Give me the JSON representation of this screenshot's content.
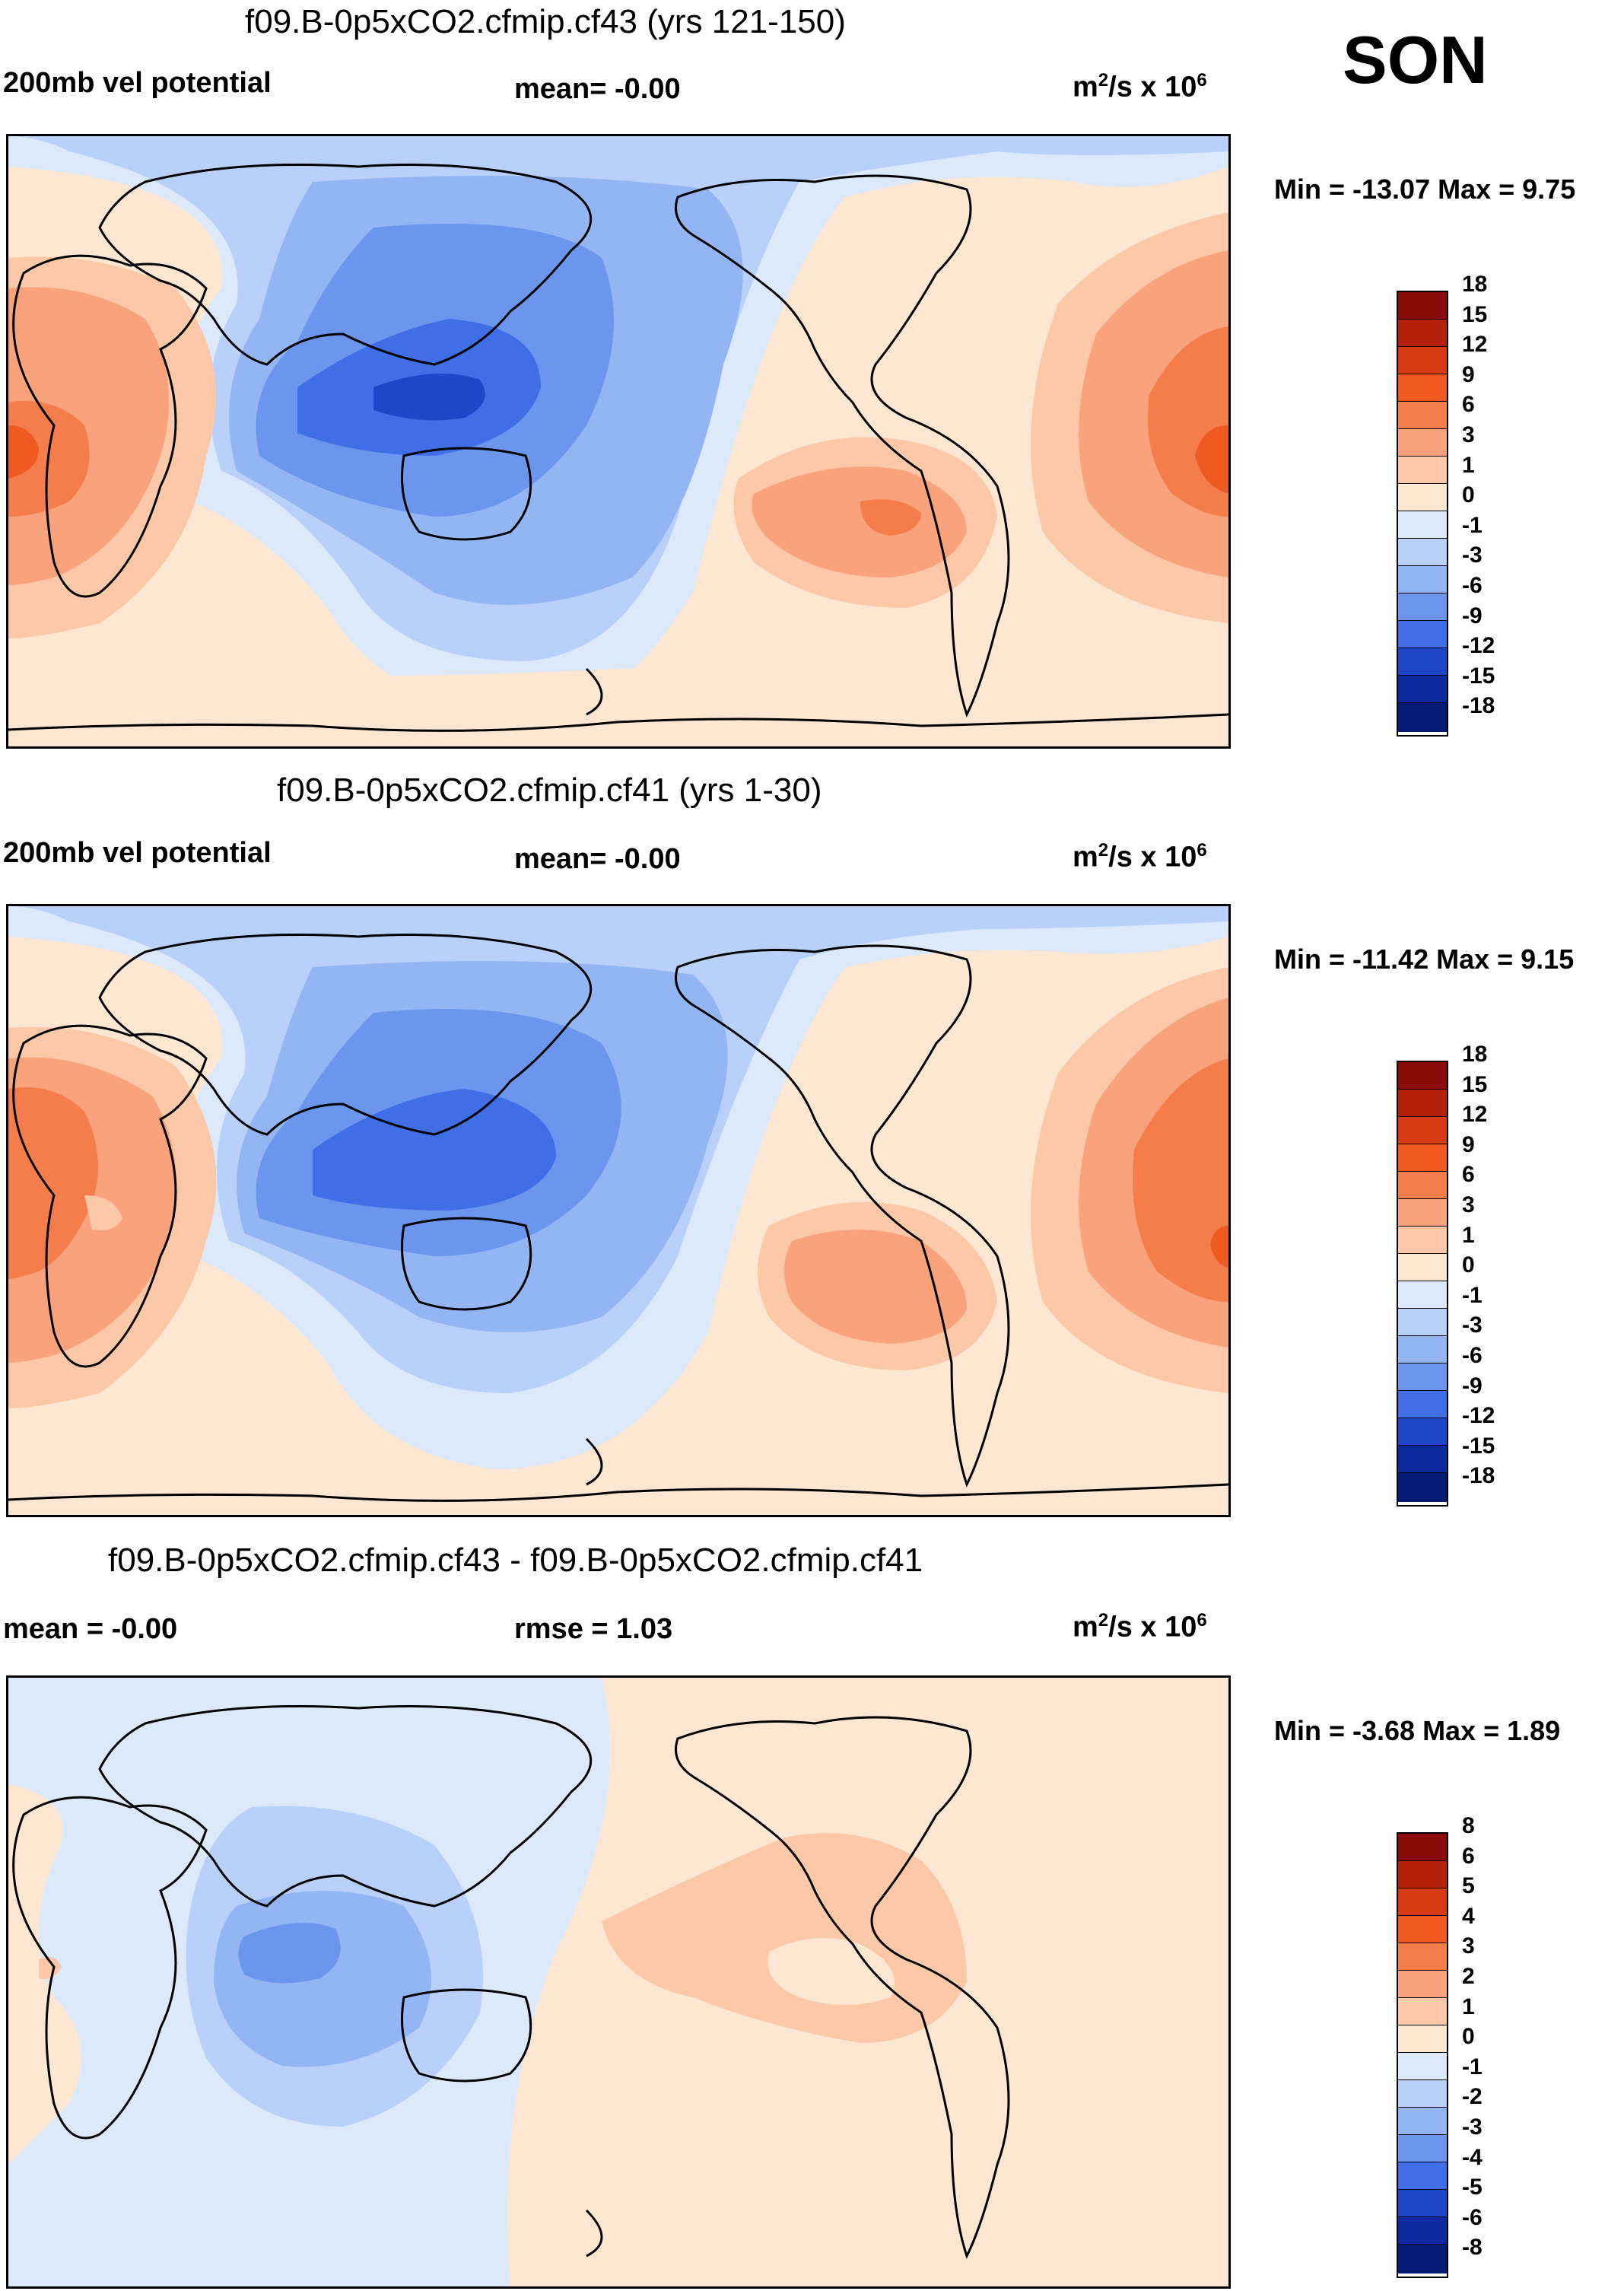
{
  "season": "SON",
  "panels": [
    {
      "title": "f09.B-0p5xCO2.cfmip.cf43 (yrs 121-150)",
      "left_label": "200mb vel potential",
      "mid_label": "mean=  -0.00",
      "unit_prefix": "m",
      "unit_mid": "/s x 10",
      "unit_sup1": "2",
      "unit_sup2": "6",
      "minmax": "Min = -13.07 Max =   9.75",
      "colorbar_labels": [
        "18",
        "15",
        "12",
        "9",
        "6",
        "3",
        "1",
        "0",
        "-1",
        "-3",
        "-6",
        "-9",
        "-12",
        "-15",
        "-18"
      ]
    },
    {
      "title": "f09.B-0p5xCO2.cfmip.cf41 (yrs 1-30)",
      "left_label": "200mb vel potential",
      "mid_label": "mean=  -0.00",
      "unit_prefix": "m",
      "unit_mid": "/s x 10",
      "unit_sup1": "2",
      "unit_sup2": "6",
      "minmax": "Min = -11.42 Max =   9.15",
      "colorbar_labels": [
        "18",
        "15",
        "12",
        "9",
        "6",
        "3",
        "1",
        "0",
        "-1",
        "-3",
        "-6",
        "-9",
        "-12",
        "-15",
        "-18"
      ]
    },
    {
      "title": "f09.B-0p5xCO2.cfmip.cf43 - f09.B-0p5xCO2.cfmip.cf41",
      "left_label": "mean =  -0.00",
      "mid_label": "rmse =    1.03",
      "unit_prefix": "m",
      "unit_mid": "/s x 10",
      "unit_sup1": "2",
      "unit_sup2": "6",
      "minmax": "Min =  -3.68 Max =   1.89",
      "colorbar_labels": [
        "8",
        "6",
        "5",
        "4",
        "3",
        "2",
        "1",
        "0",
        "-1",
        "-2",
        "-3",
        "-4",
        "-5",
        "-6",
        "-8"
      ]
    }
  ],
  "colors": {
    "colorbar": [
      "#8a0a0a",
      "#b3200c",
      "#d63a10",
      "#ef5a23",
      "#f57d4c",
      "#f9a27c",
      "#fcc8a8",
      "#fde6d2",
      "#dce9fb",
      "#b9d1fa",
      "#93b5f4",
      "#6c95ee",
      "#3f6ee6",
      "#1c47c9",
      "#0c2a9e",
      "#051a73"
    ],
    "ocean_positive_light": "#fde6d2",
    "ocean_negative_light": "#dce9fb"
  }
}
